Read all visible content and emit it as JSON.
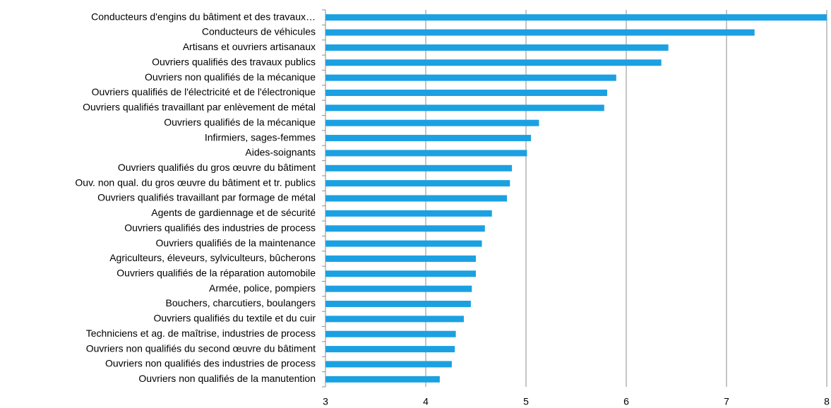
{
  "chart_data": {
    "type": "hbar",
    "categories": [
      "Conducteurs d'engins du bâtiment et des travaux…",
      "Conducteurs de véhicules",
      "Artisans et ouvriers artisanaux",
      "Ouvriers qualifiés des travaux publics",
      "Ouvriers non qualifiés de la mécanique",
      "Ouvriers qualifiés de l'électricité et de l'électronique",
      "Ouvriers qualifiés travaillant par enlèvement de métal",
      "Ouvriers qualifiés de la mécanique",
      "Infirmiers, sages-femmes",
      "Aides-soignants",
      "Ouvriers qualifiés du gros œuvre du bâtiment",
      "Ouv. non qual. du gros œuvre du bâtiment et tr. publics",
      "Ouvriers qualifiés travaillant par formage de métal",
      "Agents de gardiennage et de sécurité",
      "Ouvriers qualifiés des industries de process",
      "Ouvriers qualifiés de la maintenance",
      "Agriculteurs, éleveurs, sylviculteurs, bûcherons",
      "Ouvriers qualifiés de la réparation automobile",
      "Armée, police, pompiers",
      "Bouchers, charcutiers, boulangers",
      "Ouvriers qualifiés du textile et du cuir",
      "Techniciens et ag. de maîtrise, industries de process",
      "Ouvriers non qualifiés du second œuvre du bâtiment",
      "Ouvriers non qualifiés des industries de process",
      "Ouvriers non qualifiés de la manutention"
    ],
    "values": [
      8.0,
      7.28,
      6.42,
      6.35,
      5.9,
      5.81,
      5.78,
      5.13,
      5.05,
      5.01,
      4.86,
      4.84,
      4.81,
      4.66,
      4.59,
      4.56,
      4.5,
      4.5,
      4.46,
      4.45,
      4.38,
      4.3,
      4.29,
      4.26,
      4.14
    ],
    "color": "#1ba1e2",
    "xlim": [
      3,
      8
    ],
    "xticks": [
      3,
      4,
      5,
      6,
      7,
      8
    ],
    "grid": true
  }
}
